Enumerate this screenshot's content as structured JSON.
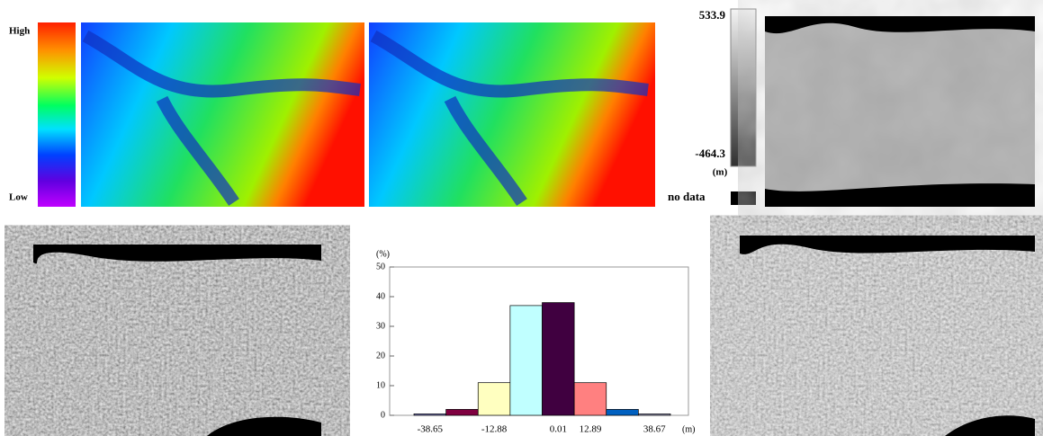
{
  "legend_colormap": {
    "high": "High",
    "low": "Low"
  },
  "legend_gray": {
    "max": "533.9",
    "min": "-464.3",
    "unit": "(m)",
    "no_data": "no data"
  },
  "chart_data": {
    "type": "bar",
    "y_label": "(%)",
    "x_label": "(m)",
    "categories": [
      "-38.65",
      null,
      "-12.88",
      null,
      "0.01",
      "12.89",
      null,
      "38.67"
    ],
    "values": [
      0.5,
      2,
      11,
      37,
      38,
      11,
      2,
      0.5
    ],
    "colors": [
      "#8080c0",
      "#800040",
      "#ffffc0",
      "#c0ffff",
      "#400040",
      "#ff8080",
      "#0060c0",
      "#a0a0c0"
    ],
    "ylim": [
      0,
      50
    ],
    "yticks": [
      0,
      10,
      20,
      30,
      40,
      50
    ]
  }
}
